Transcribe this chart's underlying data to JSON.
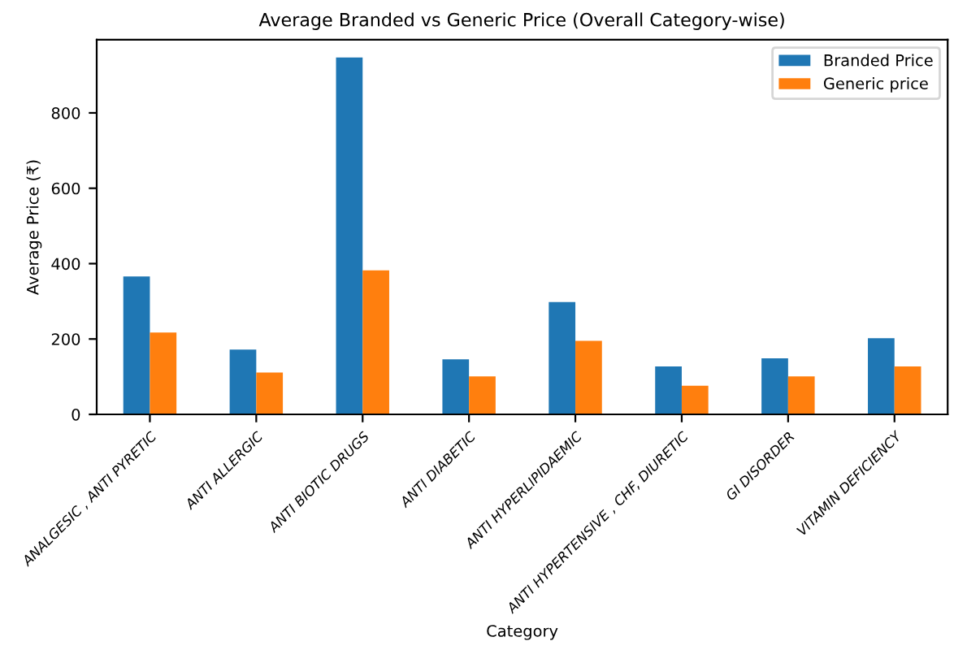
{
  "chart_data": {
    "type": "bar",
    "title": "Average Branded vs Generic Price (Overall Category-wise)",
    "xlabel": "Category",
    "ylabel": "Average Price (₹)",
    "categories": [
      "ANALGESIC , ANTI PYRETIC",
      "ANTI ALLERGIC",
      "ANTI BIOTIC DRUGS",
      "ANTI DIABETIC",
      "ANTI HYPERLIPIDAEMIC",
      "ANTI HYPERTENSIVE , CHF, DIURETIC",
      "GI DISORDER",
      "VITAMIN DEFICIENCY"
    ],
    "series": [
      {
        "name": "Branded Price",
        "color": "#1f77b4",
        "values": [
          366,
          172,
          947,
          146,
          298,
          127,
          149,
          202
        ]
      },
      {
        "name": "Generic price",
        "color": "#ff7f0e",
        "values": [
          217,
          111,
          382,
          101,
          195,
          76,
          101,
          127
        ]
      }
    ],
    "ylim": [
      0,
      994
    ],
    "yticks": [
      0,
      200,
      400,
      600,
      800
    ],
    "grid": false,
    "legend": "top right"
  }
}
